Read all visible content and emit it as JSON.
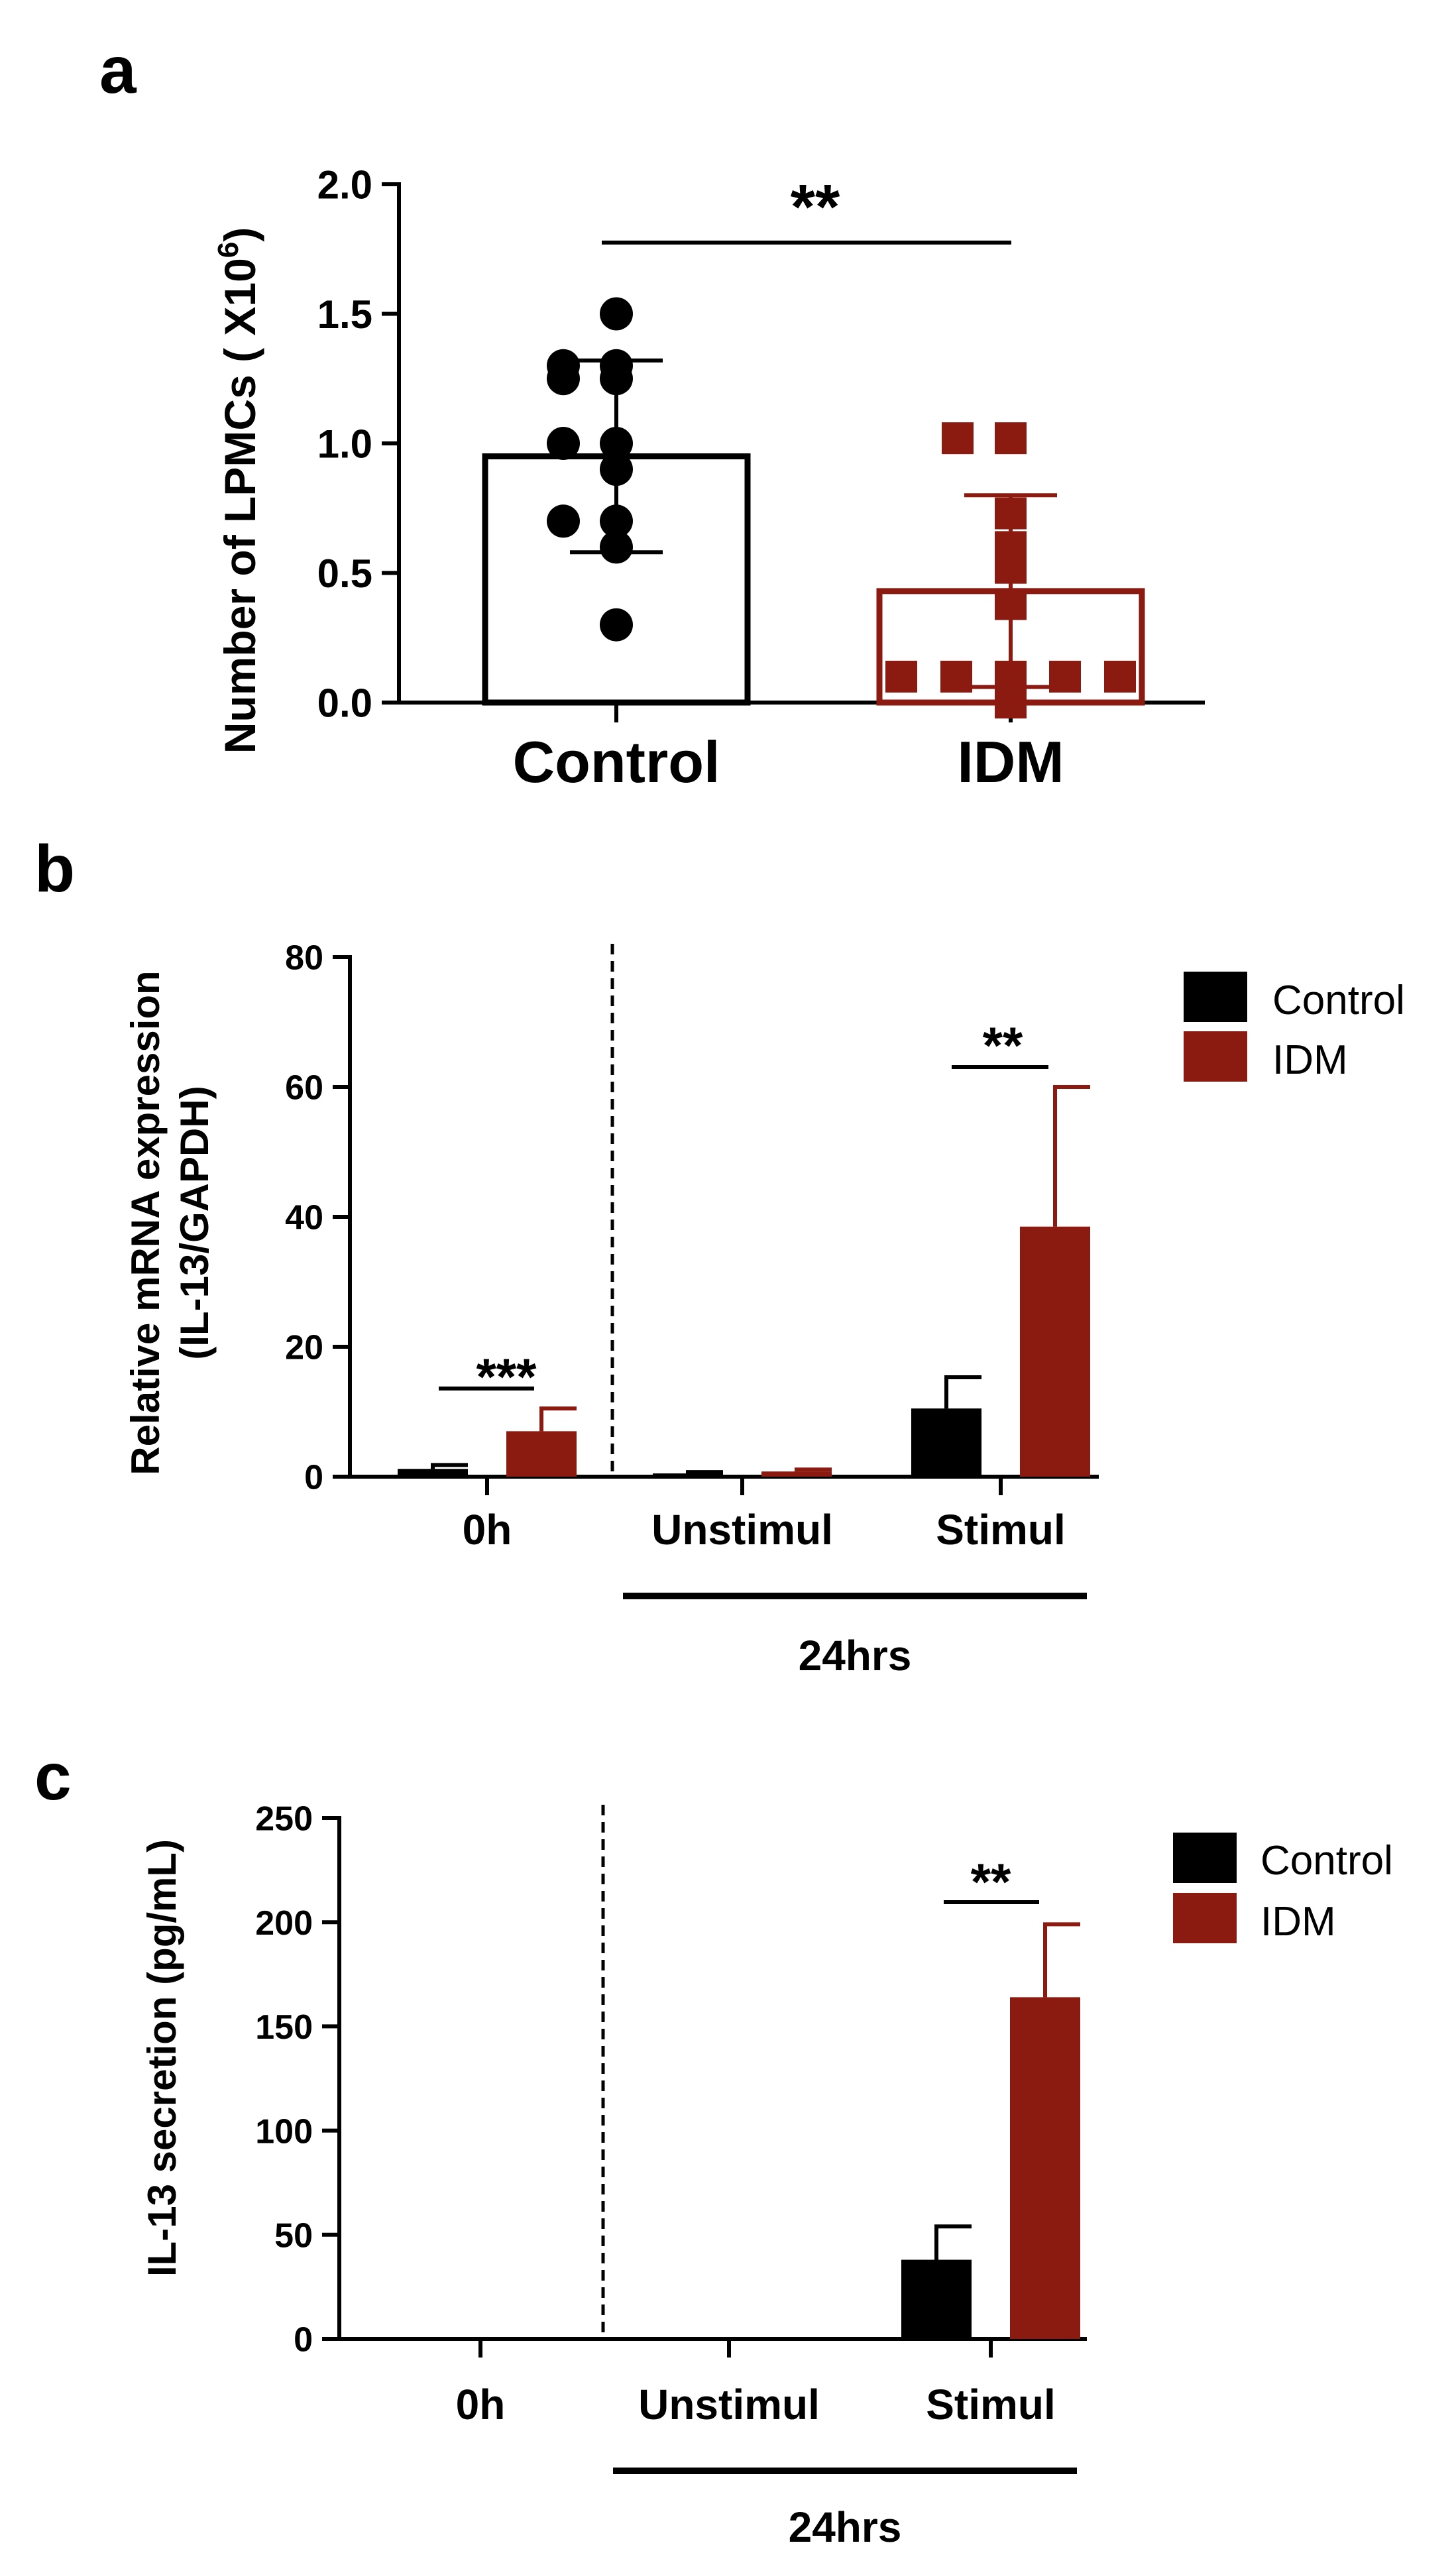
{
  "colors": {
    "control": "#000000",
    "idm": "#8b1a10",
    "axis": "#000000"
  },
  "chart_data": [
    {
      "panel": "a",
      "type": "scatter-bar",
      "ylabel": "Number of LPMCs ( X10",
      "ylabel_sup": "6",
      "ylabel_close": ")",
      "ylim": [
        0,
        2.0
      ],
      "yticks": [
        0.0,
        0.5,
        1.0,
        1.5,
        2.0
      ],
      "ytick_labels": [
        "0.0",
        "0.5",
        "1.0",
        "1.5",
        "2.0"
      ],
      "categories": [
        "Control",
        "IDM"
      ],
      "series": [
        {
          "name": "Control",
          "mean": 0.95,
          "sd": 0.37,
          "points": [
            1.5,
            1.3,
            1.3,
            1.25,
            1.25,
            1.0,
            1.0,
            0.9,
            0.7,
            0.7,
            0.6,
            0.3
          ]
        },
        {
          "name": "IDM",
          "mean": 0.43,
          "sd": 0.37,
          "points": [
            1.02,
            1.02,
            0.73,
            0.6,
            0.52,
            0.38,
            0.1,
            0.1,
            0.1,
            0.1,
            0.1,
            0.0
          ]
        }
      ],
      "significance": [
        {
          "from": "Control",
          "to": "IDM",
          "label": "**"
        }
      ]
    },
    {
      "panel": "b",
      "type": "bar",
      "ylabel_line1": "Relative mRNA expression",
      "ylabel_line2": "(IL-13/GAPDH)",
      "ylim": [
        0,
        80
      ],
      "yticks": [
        0,
        20,
        40,
        60,
        80
      ],
      "ytick_labels": [
        "0",
        "20",
        "40",
        "60",
        "80"
      ],
      "categories": [
        "0h",
        "Unstimul",
        "Stimul"
      ],
      "group_label": "24hrs",
      "series": [
        {
          "name": "Control",
          "values": [
            1.2,
            0.5,
            10.5
          ],
          "errors": [
            0.6,
            0.2,
            4.8
          ]
        },
        {
          "name": "IDM",
          "values": [
            7.0,
            0.8,
            38.5
          ],
          "errors": [
            3.5,
            0.3,
            21.5
          ]
        }
      ],
      "significance": [
        {
          "category": "0h",
          "label": "***"
        },
        {
          "category": "Stimul",
          "label": "**"
        }
      ],
      "legend": [
        "Control",
        "IDM"
      ]
    },
    {
      "panel": "c",
      "type": "bar",
      "ylabel": "IL-13 secretion (pg/mL)",
      "ylim": [
        0,
        250
      ],
      "yticks": [
        0,
        50,
        100,
        150,
        200,
        250
      ],
      "ytick_labels": [
        "0",
        "50",
        "100",
        "150",
        "200",
        "250"
      ],
      "categories": [
        "0h",
        "Unstimul",
        "Stimul"
      ],
      "group_label": "24hrs",
      "series": [
        {
          "name": "Control",
          "values": [
            0,
            0,
            38
          ],
          "errors": [
            0,
            0,
            16
          ]
        },
        {
          "name": "IDM",
          "values": [
            0,
            0,
            164
          ],
          "errors": [
            0,
            0,
            35
          ]
        }
      ],
      "significance": [
        {
          "category": "Stimul",
          "label": "**"
        }
      ],
      "legend": [
        "Control",
        "IDM"
      ]
    }
  ]
}
